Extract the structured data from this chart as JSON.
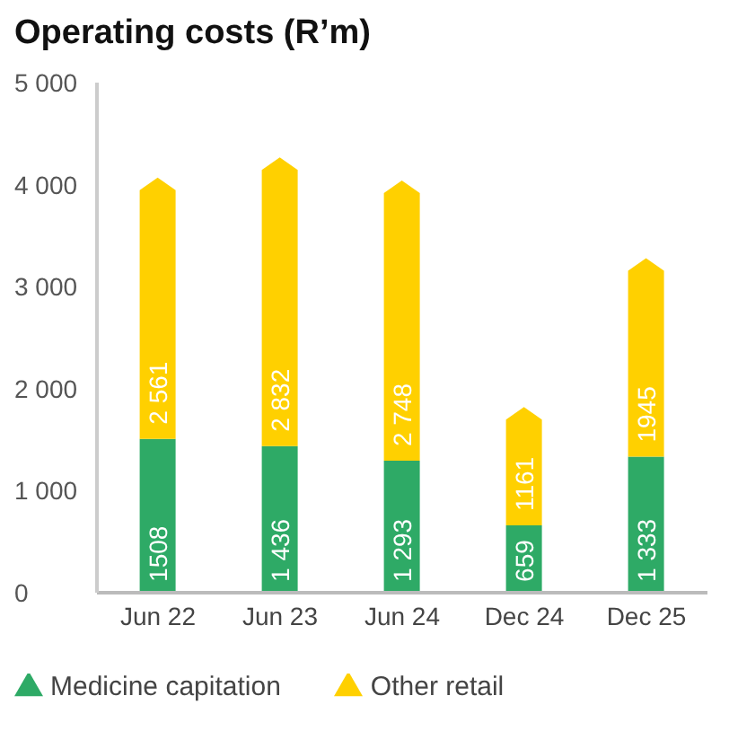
{
  "chart_data": {
    "type": "bar",
    "title": "Operating costs (R’m)",
    "categories": [
      "Jun 22",
      "Jun 23",
      "Jun 24",
      "Dec 24",
      "Dec 25"
    ],
    "stacked": true,
    "series": [
      {
        "name": "Medicine capitation",
        "color": "#2eaa66",
        "values": [
          1508,
          1436,
          1293,
          659,
          1333
        ],
        "value_labels": [
          "1508",
          "1 436",
          "1 293",
          "659",
          "1 333"
        ]
      },
      {
        "name": "Other retail",
        "color": "#ffd000",
        "values": [
          2561,
          2832,
          2748,
          1161,
          1945
        ],
        "value_labels": [
          "2 561",
          "2 832",
          "2 748",
          "1161",
          "1945"
        ]
      }
    ],
    "ylim": [
      0,
      5000
    ],
    "yticks": [
      0,
      {
        "value": 1000,
        "label": "1 000"
      },
      {
        "value": 2000,
        "label": "2 000"
      },
      {
        "value": 3000,
        "label": "3 000"
      },
      {
        "value": 4000,
        "label": "4 000"
      },
      {
        "value": 5000,
        "label": "5 000"
      }
    ],
    "grid": false,
    "legend": "bottom"
  }
}
